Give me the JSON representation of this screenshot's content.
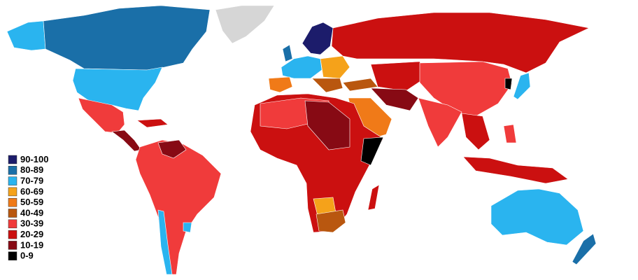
{
  "legend": {
    "items": [
      {
        "label": "90-100",
        "color": "#1c1c6b"
      },
      {
        "label": "80-89",
        "color": "#1a6fa8"
      },
      {
        "label": "70-79",
        "color": "#2ab4ef"
      },
      {
        "label": "60-69",
        "color": "#f5a21a"
      },
      {
        "label": "50-59",
        "color": "#f07a18"
      },
      {
        "label": "40-49",
        "color": "#b9570f"
      },
      {
        "label": "30-39",
        "color": "#f03b3b"
      },
      {
        "label": "20-29",
        "color": "#cb1010"
      },
      {
        "label": "10-19",
        "color": "#870a14"
      },
      {
        "label": "0-9",
        "color": "#000000"
      }
    ]
  }
}
